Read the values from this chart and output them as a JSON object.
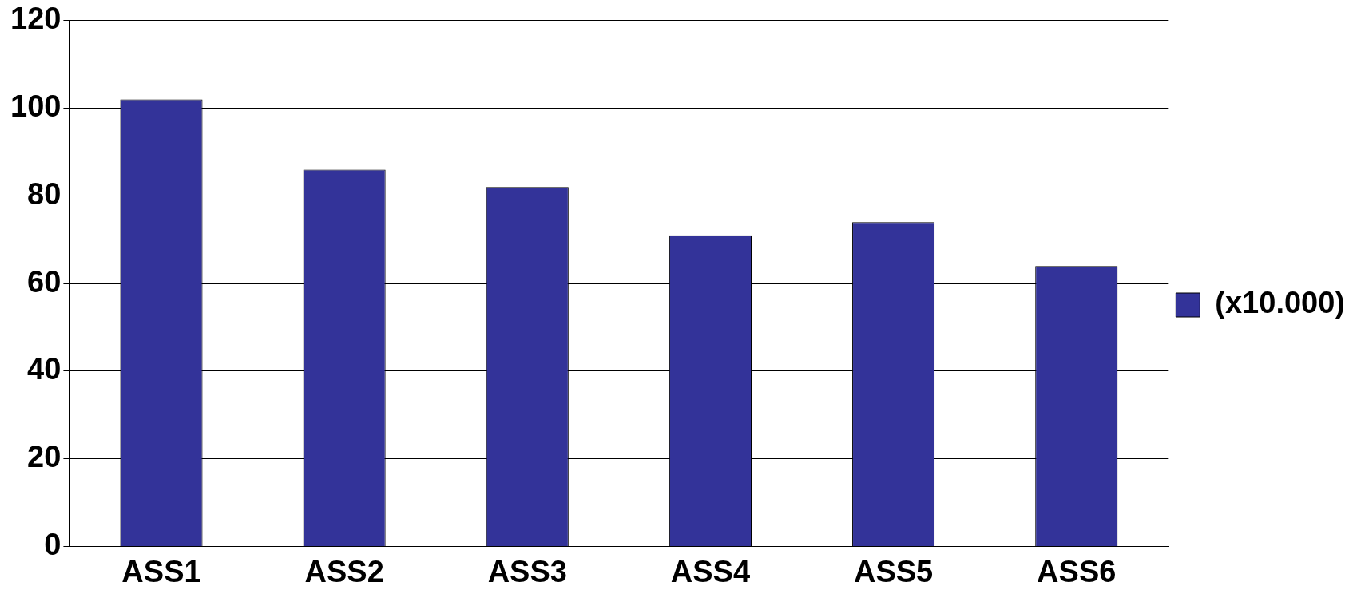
{
  "chart_data": {
    "type": "bar",
    "categories": [
      "ASS1",
      "ASS2",
      "ASS3",
      "ASS4",
      "ASS5",
      "ASS6"
    ],
    "series": [
      {
        "name": "(x10.000)",
        "color": "#333399",
        "values": [
          102,
          86,
          82,
          71,
          74,
          64
        ]
      }
    ],
    "ylim": [
      0,
      120
    ],
    "yticks": [
      0,
      20,
      40,
      60,
      80,
      100,
      120
    ],
    "grid": "y",
    "legend": "right"
  }
}
